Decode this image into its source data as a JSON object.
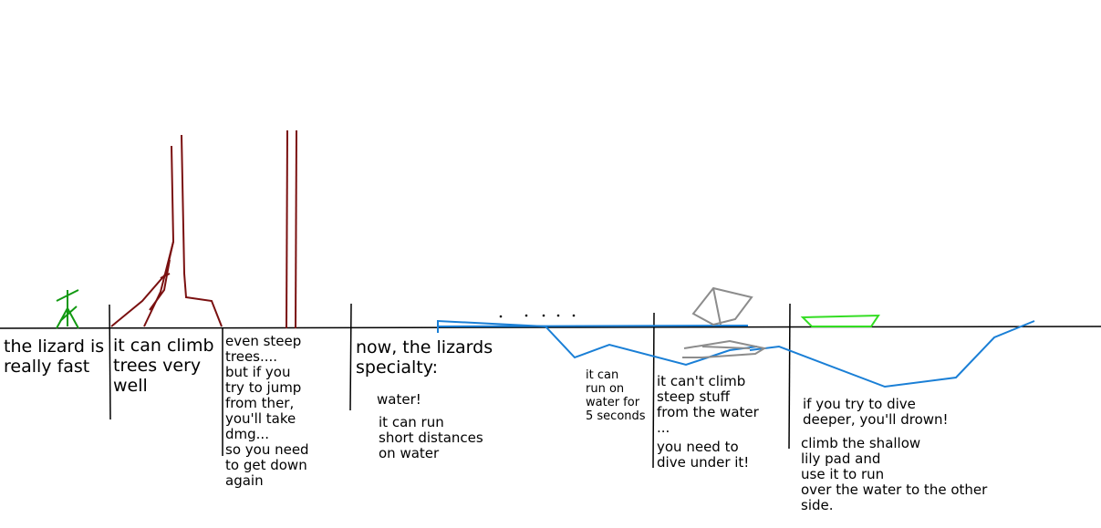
{
  "colors": {
    "ink": "#000000",
    "lizard": "#119911",
    "trees": "#7a1010",
    "water": "#1a7fd6",
    "rock": "#8c8c8c",
    "lily_pad": "#33dd22"
  },
  "icons": [
    "lizard-stick-figure",
    "tree",
    "steep-tree",
    "rock-formation",
    "lily-pad"
  ],
  "notes": {
    "fast": "the lizard is\nreally fast",
    "climb": "it can climb\ntrees very\nwell",
    "steep": "even steep\ntrees....\nbut if you\ntry to jump\nfrom ther,\nyou'll take\ndmg...\nso you need\nto get down\nagain",
    "specialty": "now, the lizards\nspecialty:",
    "water_title": "water!",
    "run_short": "it can run\nshort distances\non water",
    "five_seconds": "it can\nrun on\nwater for\n5 seconds",
    "cant_climb": "it can't climb\nsteep stuff\nfrom the water\n...",
    "dive": "you need to\ndive under it!",
    "drown": "if you try to dive\ndeeper, you'll drown!",
    "lily": "climb the shallow\nlily pad and\nuse it to run\nover the water to the other\nside."
  }
}
